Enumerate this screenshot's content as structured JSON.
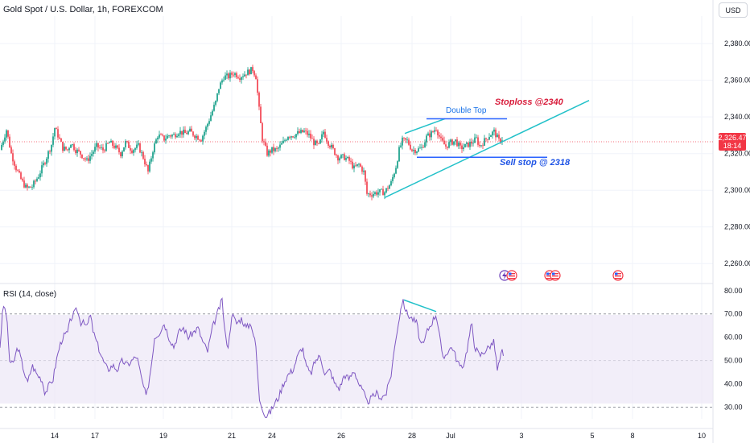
{
  "header": {
    "title": "Gold Spot / U.S. Dollar, 1h, FOREXCOM",
    "currency": "USD"
  },
  "indicator": {
    "label": "RSI (14, close)"
  },
  "last_price": {
    "price": "2,326.47",
    "countdown": "18:14"
  },
  "annotations": {
    "double_top": "Double Top",
    "stoploss": "Stoploss @2340",
    "sell_stop": "Sell stop @ 2318"
  },
  "colors": {
    "up": "#089981",
    "down": "#f23645",
    "trendline": "#22c1c9",
    "level": "#2962ff",
    "rsi": "#7e57c2",
    "rsi_band": "#ede7f6",
    "annotation_text": "#d81b3a",
    "sell_text": "#1e53e5",
    "grid": "#f0f3fa"
  },
  "event_icons": [
    "lightning-flag-icon",
    "us-flag-icon",
    "us-flag-icon",
    "us-flag-icon",
    "us-flag-icon"
  ],
  "chart_data": [
    {
      "type": "candlestick",
      "title": "Gold Spot / U.S. Dollar, 1h, FOREXCOM",
      "x_ticks": [
        "14",
        "17",
        "19",
        "21",
        "24",
        "26",
        "28",
        "Jul",
        "3",
        "5",
        "8",
        "10"
      ],
      "y_ticks": [
        "2,260.00",
        "2,280.00",
        "2,300.00",
        "2,320.00",
        "2,340.00",
        "2,360.00",
        "2,380.00"
      ],
      "ylim": [
        2250,
        2395
      ],
      "last_price": 2326.47,
      "anchors": [
        [
          0,
          2322
        ],
        [
          8,
          2333
        ],
        [
          14,
          2320
        ],
        [
          20,
          2312
        ],
        [
          27,
          2305
        ],
        [
          33,
          2301
        ],
        [
          40,
          2302
        ],
        [
          48,
          2308
        ],
        [
          56,
          2316
        ],
        [
          64,
          2325
        ],
        [
          68,
          2334
        ],
        [
          72,
          2330
        ],
        [
          78,
          2323
        ],
        [
          84,
          2322
        ],
        [
          88,
          2326
        ],
        [
          94,
          2322
        ],
        [
          100,
          2320
        ],
        [
          108,
          2316
        ],
        [
          114,
          2320
        ],
        [
          120,
          2324
        ],
        [
          128,
          2322
        ],
        [
          136,
          2326
        ],
        [
          142,
          2324
        ],
        [
          150,
          2320
        ],
        [
          156,
          2326
        ],
        [
          164,
          2322
        ],
        [
          172,
          2324
        ],
        [
          178,
          2318
        ],
        [
          184,
          2310
        ],
        [
          190,
          2322
        ],
        [
          196,
          2330
        ],
        [
          204,
          2328
        ],
        [
          210,
          2330
        ],
        [
          216,
          2330
        ],
        [
          222,
          2332
        ],
        [
          230,
          2331
        ],
        [
          236,
          2332
        ],
        [
          242,
          2330
        ],
        [
          250,
          2328
        ],
        [
          256,
          2334
        ],
        [
          262,
          2341
        ],
        [
          268,
          2348
        ],
        [
          272,
          2356
        ],
        [
          278,
          2362
        ],
        [
          284,
          2362
        ],
        [
          290,
          2364
        ],
        [
          298,
          2362
        ],
        [
          306,
          2364
        ],
        [
          314,
          2366
        ],
        [
          318,
          2362
        ],
        [
          322,
          2344
        ],
        [
          326,
          2328
        ],
        [
          332,
          2320
        ],
        [
          338,
          2322
        ],
        [
          344,
          2322
        ],
        [
          352,
          2326
        ],
        [
          358,
          2330
        ],
        [
          364,
          2330
        ],
        [
          370,
          2331
        ],
        [
          378,
          2332
        ],
        [
          384,
          2330
        ],
        [
          390,
          2326
        ],
        [
          396,
          2324
        ],
        [
          402,
          2332
        ],
        [
          408,
          2326
        ],
        [
          414,
          2322
        ],
        [
          420,
          2318
        ],
        [
          428,
          2318
        ],
        [
          434,
          2316
        ],
        [
          440,
          2312
        ],
        [
          446,
          2314
        ],
        [
          452,
          2310
        ],
        [
          456,
          2298
        ],
        [
          462,
          2298
        ],
        [
          470,
          2299
        ],
        [
          478,
          2299
        ],
        [
          486,
          2304
        ],
        [
          492,
          2313
        ],
        [
          496,
          2322
        ],
        [
          500,
          2327
        ],
        [
          506,
          2327
        ],
        [
          512,
          2322
        ],
        [
          518,
          2322
        ],
        [
          524,
          2323
        ],
        [
          530,
          2329
        ],
        [
          536,
          2331
        ],
        [
          542,
          2334
        ],
        [
          548,
          2327
        ],
        [
          554,
          2324
        ],
        [
          560,
          2326
        ],
        [
          566,
          2327
        ],
        [
          572,
          2323
        ],
        [
          578,
          2324
        ],
        [
          586,
          2326
        ],
        [
          592,
          2328
        ],
        [
          596,
          2324
        ],
        [
          602,
          2327
        ],
        [
          608,
          2330
        ],
        [
          614,
          2332
        ],
        [
          620,
          2327
        ],
        [
          624,
          2328
        ]
      ]
    },
    {
      "type": "line",
      "title": "RSI (14, close)",
      "y_ticks": [
        "30.00",
        "40.00",
        "50.00",
        "60.00",
        "70.00",
        "80.00"
      ],
      "ylim": [
        25,
        82
      ],
      "bands": [
        30,
        50,
        70
      ],
      "anchors": [
        [
          0,
          56
        ],
        [
          4,
          74
        ],
        [
          8,
          70
        ],
        [
          12,
          50
        ],
        [
          16,
          48
        ],
        [
          22,
          56
        ],
        [
          28,
          48
        ],
        [
          34,
          40
        ],
        [
          40,
          48
        ],
        [
          46,
          44
        ],
        [
          52,
          42
        ],
        [
          56,
          36
        ],
        [
          62,
          40
        ],
        [
          66,
          42
        ],
        [
          70,
          50
        ],
        [
          74,
          56
        ],
        [
          78,
          60
        ],
        [
          84,
          62
        ],
        [
          88,
          68
        ],
        [
          92,
          70
        ],
        [
          96,
          72
        ],
        [
          100,
          66
        ],
        [
          104,
          68
        ],
        [
          108,
          64
        ],
        [
          112,
          70
        ],
        [
          116,
          62
        ],
        [
          122,
          56
        ],
        [
          128,
          50
        ],
        [
          134,
          46
        ],
        [
          140,
          48
        ],
        [
          146,
          46
        ],
        [
          152,
          50
        ],
        [
          158,
          48
        ],
        [
          164,
          50
        ],
        [
          170,
          52
        ],
        [
          176,
          42
        ],
        [
          182,
          34
        ],
        [
          188,
          48
        ],
        [
          192,
          60
        ],
        [
          198,
          62
        ],
        [
          204,
          66
        ],
        [
          210,
          60
        ],
        [
          216,
          56
        ],
        [
          222,
          62
        ],
        [
          228,
          64
        ],
        [
          234,
          60
        ],
        [
          240,
          62
        ],
        [
          246,
          64
        ],
        [
          252,
          58
        ],
        [
          258,
          54
        ],
        [
          264,
          64
        ],
        [
          270,
          70
        ],
        [
          276,
          76
        ],
        [
          280,
          60
        ],
        [
          284,
          56
        ],
        [
          288,
          70
        ],
        [
          294,
          66
        ],
        [
          300,
          68
        ],
        [
          306,
          64
        ],
        [
          312,
          66
        ],
        [
          318,
          56
        ],
        [
          322,
          34
        ],
        [
          326,
          30
        ],
        [
          330,
          26
        ],
        [
          336,
          28
        ],
        [
          342,
          32
        ],
        [
          346,
          34
        ],
        [
          352,
          40
        ],
        [
          358,
          44
        ],
        [
          364,
          46
        ],
        [
          370,
          52
        ],
        [
          376,
          56
        ],
        [
          380,
          48
        ],
        [
          386,
          44
        ],
        [
          392,
          50
        ],
        [
          398,
          52
        ],
        [
          404,
          44
        ],
        [
          410,
          46
        ],
        [
          416,
          40
        ],
        [
          422,
          38
        ],
        [
          428,
          44
        ],
        [
          434,
          42
        ],
        [
          440,
          46
        ],
        [
          446,
          40
        ],
        [
          452,
          36
        ],
        [
          456,
          32
        ],
        [
          462,
          34
        ],
        [
          468,
          36
        ],
        [
          474,
          34
        ],
        [
          480,
          36
        ],
        [
          486,
          44
        ],
        [
          492,
          60
        ],
        [
          496,
          68
        ],
        [
          500,
          76
        ],
        [
          506,
          70
        ],
        [
          512,
          68
        ],
        [
          518,
          66
        ],
        [
          522,
          58
        ],
        [
          526,
          56
        ],
        [
          530,
          62
        ],
        [
          536,
          66
        ],
        [
          542,
          70
        ],
        [
          546,
          62
        ],
        [
          550,
          50
        ],
        [
          556,
          54
        ],
        [
          562,
          56
        ],
        [
          568,
          50
        ],
        [
          574,
          46
        ],
        [
          580,
          54
        ],
        [
          586,
          66
        ],
        [
          590,
          56
        ],
        [
          596,
          52
        ],
        [
          602,
          54
        ],
        [
          608,
          56
        ],
        [
          614,
          58
        ],
        [
          618,
          46
        ],
        [
          624,
          54
        ],
        [
          626,
          50
        ]
      ]
    }
  ]
}
